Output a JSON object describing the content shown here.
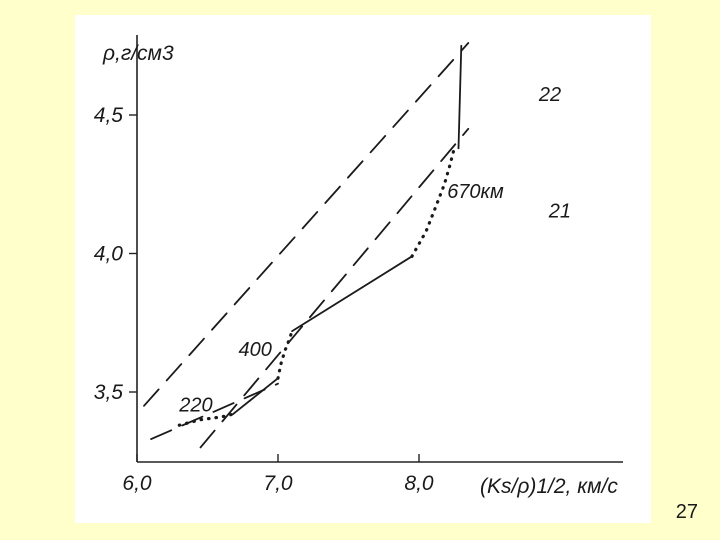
{
  "slide": {
    "page_number": "27",
    "background": "#ffffcc",
    "figure_background": "#ffffff"
  },
  "chart_data": {
    "type": "line",
    "title": "",
    "xlabel": "(Ks/ρ)1/2, км/с",
    "ylabel": "ρ,г/см3",
    "xlim": [
      6.0,
      8.4
    ],
    "ylim": [
      3.3,
      4.8
    ],
    "x_ticks": [
      {
        "value": 6.0,
        "label": "6,0"
      },
      {
        "value": 7.0,
        "label": "7,0"
      },
      {
        "value": 8.0,
        "label": "8,0"
      }
    ],
    "y_ticks": [
      {
        "value": 3.5,
        "label": "3,5"
      },
      {
        "value": 4.0,
        "label": "4,0"
      },
      {
        "value": 4.5,
        "label": "4,5"
      }
    ],
    "grid": false,
    "series": [
      {
        "name": "22",
        "style": "dashed",
        "x": [
          6.05,
          8.35
        ],
        "y": [
          3.45,
          4.76
        ]
      },
      {
        "name": "21",
        "style": "dashed",
        "x": [
          6.45,
          8.35
        ],
        "y": [
          3.3,
          4.45
        ]
      },
      {
        "name": "",
        "style": "dashed",
        "x": [
          6.1,
          7.0
        ],
        "y": [
          3.33,
          3.53
        ]
      },
      {
        "name": "",
        "style": "solid",
        "x": [
          6.68,
          7.0
        ],
        "y": [
          3.42,
          3.55
        ]
      },
      {
        "name": "",
        "style": "solid",
        "x": [
          7.1,
          7.95
        ],
        "y": [
          3.72,
          3.99
        ]
      },
      {
        "name": "",
        "style": "solid",
        "x": [
          8.28,
          8.28
        ],
        "y": [
          4.38,
          4.38
        ]
      },
      {
        "name": "",
        "style": "solid",
        "x": [
          8.28,
          8.3
        ],
        "y": [
          4.38,
          4.75
        ]
      },
      {
        "name": "",
        "style": "dotted",
        "x": [
          6.3,
          6.45,
          6.6,
          6.68
        ],
        "y": [
          3.38,
          3.4,
          3.41,
          3.42
        ]
      },
      {
        "name": "",
        "style": "dotted",
        "x": [
          7.0,
          7.02,
          7.05,
          7.08,
          7.1
        ],
        "y": [
          3.55,
          3.6,
          3.65,
          3.69,
          3.72
        ]
      },
      {
        "name": "",
        "style": "dotted",
        "x": [
          7.95,
          8.05,
          8.12,
          8.18,
          8.22,
          8.25
        ],
        "y": [
          3.99,
          4.08,
          4.17,
          4.25,
          4.32,
          4.38
        ]
      }
    ],
    "annotations": [
      {
        "text": "220",
        "x": 6.3,
        "y": 3.43
      },
      {
        "text": "400",
        "x": 6.72,
        "y": 3.63
      },
      {
        "text": "670км",
        "x": 8.2,
        "y": 4.2
      },
      {
        "text": "22",
        "x": 8.85,
        "y": 4.55
      },
      {
        "text": "21",
        "x": 8.92,
        "y": 4.13
      }
    ]
  }
}
